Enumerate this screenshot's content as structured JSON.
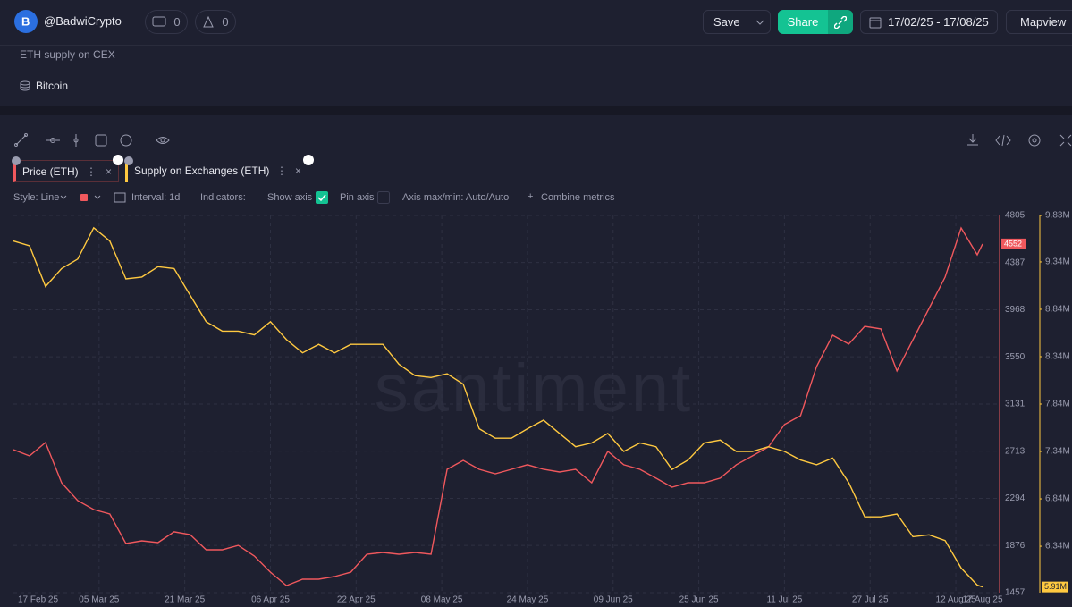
{
  "header": {
    "user": "@BadwiCrypto",
    "comments": "0",
    "likes": "0",
    "save": "Save",
    "share": "Share",
    "date_range": "17/02/25 - 17/08/25",
    "mapview": "Mapview"
  },
  "description": "ETH supply on CEX",
  "asset": "Bitcoin",
  "settings": {
    "style": "Style: Line",
    "interval": "Interval: 1d",
    "indicators": "Indicators:",
    "show_axis": "Show axis",
    "pin_axis": "Pin axis",
    "axis_maxmin": "Axis max/min: Auto/Auto",
    "combine": "Combine metrics"
  },
  "chart_data": {
    "type": "line",
    "watermark": "santiment",
    "x": [
      "17 Feb 25",
      "20 Feb 25",
      "23 Feb 25",
      "26 Feb 25",
      "01 Mar 25",
      "04 Mar 25",
      "07 Mar 25",
      "10 Mar 25",
      "13 Mar 25",
      "16 Mar 25",
      "19 Mar 25",
      "22 Mar 25",
      "25 Mar 25",
      "28 Mar 25",
      "31 Mar 25",
      "03 Apr 25",
      "06 Apr 25",
      "09 Apr 25",
      "12 Apr 25",
      "15 Apr 25",
      "18 Apr 25",
      "21 Apr 25",
      "24 Apr 25",
      "27 Apr 25",
      "30 Apr 25",
      "03 May 25",
      "06 May 25",
      "09 May 25",
      "12 May 25",
      "15 May 25",
      "18 May 25",
      "21 May 25",
      "24 May 25",
      "27 May 25",
      "30 May 25",
      "02 Jun 25",
      "05 Jun 25",
      "08 Jun 25",
      "11 Jun 25",
      "14 Jun 25",
      "17 Jun 25",
      "20 Jun 25",
      "23 Jun 25",
      "26 Jun 25",
      "29 Jun 25",
      "02 Jul 25",
      "05 Jul 25",
      "08 Jul 25",
      "11 Jul 25",
      "14 Jul 25",
      "17 Jul 25",
      "20 Jul 25",
      "23 Jul 25",
      "26 Jul 25",
      "29 Jul 25",
      "01 Aug 25",
      "04 Aug 25",
      "07 Aug 25",
      "10 Aug 25",
      "13 Aug 25",
      "16 Aug 25",
      "17 Aug 25"
    ],
    "xlim": [
      "17 Feb 25",
      "17 Aug 25"
    ],
    "xticks": [
      "17 Feb 25",
      "05 Mar 25",
      "21 Mar 25",
      "06 Apr 25",
      "22 Apr 25",
      "08 May 25",
      "24 May 25",
      "09 Jun 25",
      "25 Jun 25",
      "11 Jul 25",
      "27 Jul 25",
      "12 Aug 25",
      "17 Aug 25"
    ],
    "ylim": [
      1457,
      4805
    ],
    "yticks": [
      4805,
      4387,
      3968,
      3550,
      3131,
      2713,
      2294,
      1876,
      1457
    ],
    "y2lim": [
      5850000,
      9830000
    ],
    "y2ticks": [
      {
        "value": 9830000,
        "label": "9.83M"
      },
      {
        "value": 9340000,
        "label": "9.34M"
      },
      {
        "value": 8840000,
        "label": "8.84M"
      },
      {
        "value": 8340000,
        "label": "8.34M"
      },
      {
        "value": 7840000,
        "label": "7.84M"
      },
      {
        "value": 7340000,
        "label": "7.34M"
      },
      {
        "value": 6840000,
        "label": "6.84M"
      },
      {
        "value": 6340000,
        "label": "6.34M"
      }
    ],
    "grid": true,
    "series": [
      {
        "name": "Price (ETH)",
        "color": "#f0585d",
        "last_value": 4552,
        "values": [
          2726,
          2671,
          2790,
          2433,
          2274,
          2195,
          2155,
          1893,
          1917,
          1901,
          1997,
          1973,
          1838,
          1838,
          1877,
          1782,
          1639,
          1520,
          1576,
          1576,
          1600,
          1639,
          1798,
          1814,
          1798,
          1814,
          1798,
          2552,
          2631,
          2552,
          2512,
          2552,
          2592,
          2552,
          2528,
          2552,
          2433,
          2711,
          2592,
          2552,
          2473,
          2393,
          2433,
          2433,
          2473,
          2592,
          2671,
          2750,
          2949,
          3028,
          3464,
          3742,
          3663,
          3821,
          3798,
          3425,
          3702,
          3980,
          4258,
          4694,
          4456,
          4552
        ]
      },
      {
        "name": "Supply on Exchanges (ETH)",
        "color": "#ffc940",
        "axis": "y2",
        "last_value": {
          "value": 5910000,
          "label": "5.91M"
        },
        "values": [
          9560000,
          9510000,
          9080000,
          9270000,
          9370000,
          9700000,
          9560000,
          9160000,
          9180000,
          9290000,
          9270000,
          8990000,
          8710000,
          8610000,
          8610000,
          8570000,
          8710000,
          8520000,
          8380000,
          8470000,
          8380000,
          8470000,
          8470000,
          8470000,
          8260000,
          8140000,
          8120000,
          8160000,
          8050000,
          7580000,
          7480000,
          7480000,
          7580000,
          7670000,
          7530000,
          7390000,
          7430000,
          7530000,
          7340000,
          7430000,
          7390000,
          7150000,
          7250000,
          7430000,
          7460000,
          7340000,
          7340000,
          7390000,
          7340000,
          7250000,
          7200000,
          7270000,
          7010000,
          6650000,
          6650000,
          6680000,
          6440000,
          6460000,
          6400000,
          6110000,
          5930000,
          5910000
        ]
      }
    ]
  }
}
